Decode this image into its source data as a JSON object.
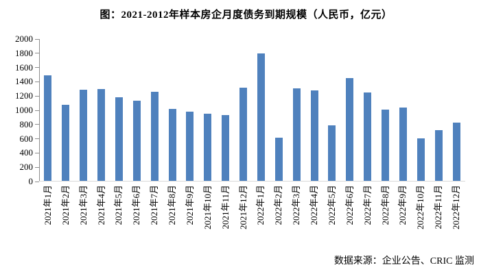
{
  "figure": {
    "title": "图：2021-2012年样本房企月度债务到期规模（人民币，亿元）",
    "source": "数据来源：企业公告、CRIC 监测"
  },
  "chart_data": {
    "type": "bar",
    "title": "图：2021-2012年样本房企月度债务到期规模（人民币，亿元）",
    "categories": [
      "2021年1月",
      "2021年2月",
      "2021年3月",
      "2021年4月",
      "2021年5月",
      "2021年6月",
      "2021年7月",
      "2021年8月",
      "2021年9月",
      "2021年10月",
      "2021年11月",
      "2021年12月",
      "2022年1月",
      "2022年2月",
      "2022年3月",
      "2022年4月",
      "2022年5月",
      "2022年6月",
      "2022年7月",
      "2022年8月",
      "2022年9月",
      "2022年10月",
      "2022年11月",
      "2022年12月"
    ],
    "values": [
      1490,
      1080,
      1290,
      1300,
      1180,
      1130,
      1260,
      1020,
      980,
      950,
      930,
      1320,
      1800,
      620,
      1310,
      1280,
      790,
      1450,
      1250,
      1010,
      1040,
      610,
      720,
      830
    ],
    "xlabel": "",
    "ylabel": "",
    "ylim": [
      0,
      2000
    ],
    "ytick_step": 200,
    "grid": false,
    "legend": "none",
    "bar_color": "#4F81BD",
    "axis_color": "#8C8C8C",
    "baseline_color": "#D9D9D9",
    "annotation": "数据来源：企业公告、CRIC 监测"
  }
}
